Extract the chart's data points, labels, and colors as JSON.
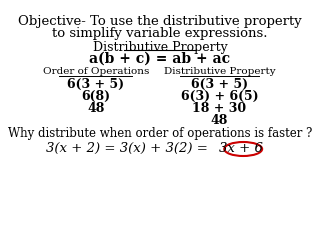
{
  "bg_color": "#ffffff",
  "title_line1": "Objective- To use the distributive property",
  "title_line2": "to simplify variable expressions.",
  "dist_prop_label": "Distributive Property",
  "dist_prop_formula": "a(b + c) = ab + ac",
  "col1_header": "Order of Operations",
  "col2_header": "Distributive Property",
  "col1_rows": [
    "6(3 + 5)",
    "6(8)",
    "48"
  ],
  "col2_rows": [
    "6(3 + 5)",
    "6(3) + 6(5)",
    "18 + 30",
    "48"
  ],
  "why_text": "Why distribute when order of operations is faster ?",
  "eq_left": "3(x + 2) = 3(x) + 3(2) = ",
  "eq_right": "3x + 6",
  "ellipse_color": "#cc0000",
  "text_color": "#000000"
}
